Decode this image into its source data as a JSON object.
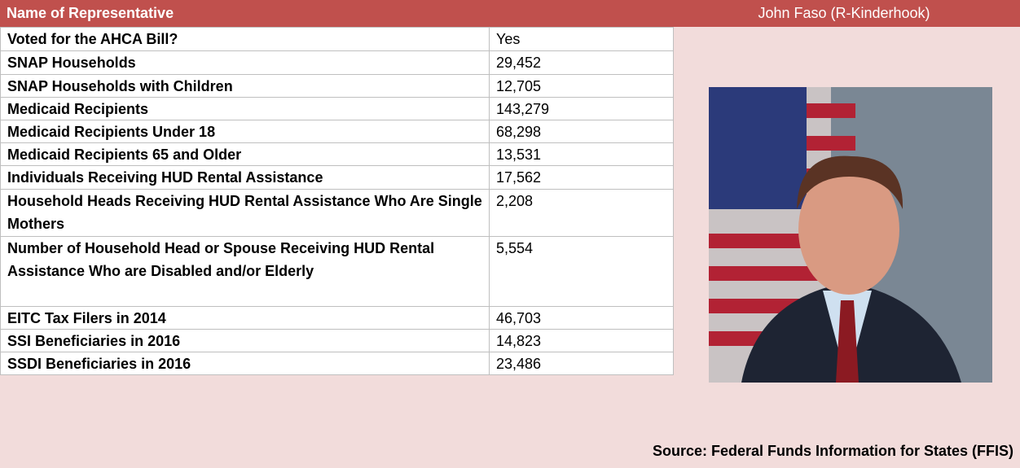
{
  "header": {
    "label": "Name of Representative",
    "name": "John Faso (R-Kinderhook)"
  },
  "rows": [
    [
      "Voted for the AHCA Bill?",
      "Yes"
    ],
    [
      "SNAP Households",
      "29,452"
    ],
    [
      "SNAP Households with Children",
      "12,705"
    ],
    [
      "Medicaid Recipients",
      "143,279"
    ],
    [
      "Medicaid Recipients Under 18",
      "68,298"
    ],
    [
      "Medicaid Recipients 65 and Older",
      "13,531"
    ],
    [
      "Individuals Receiving HUD Rental Assistance",
      "17,562"
    ],
    [
      "Household Heads Receiving HUD Rental Assistance Who Are Single Mothers",
      "2,208"
    ],
    [
      "Number of Household Head or Spouse Receiving HUD Rental Assistance Who are Disabled and/or Elderly",
      "5,554"
    ],
    [
      "EITC Tax Filers in 2014",
      "46,703"
    ],
    [
      "SSI Beneficiaries in 2016",
      "14,823"
    ],
    [
      "SSDI Beneficiaries in 2016",
      "23,486"
    ]
  ],
  "source": "Source: Federal Funds Information for States (FFIS)"
}
